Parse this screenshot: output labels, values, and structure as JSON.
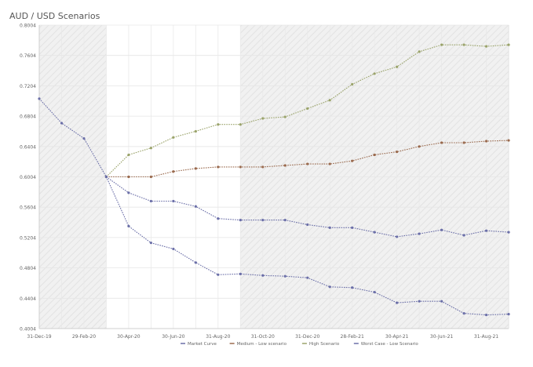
{
  "chart_data": {
    "type": "line",
    "title": "AUD / USD Scenarios",
    "x": [
      "31-Dec-19",
      "31-Jan-20",
      "29-Feb-20",
      "31-Mar-20",
      "30-Apr-20",
      "31-May-20",
      "30-Jun-20",
      "31-Jul-20",
      "31-Aug-20",
      "30-Sep-20",
      "31-Oct-20",
      "30-Nov-20",
      "31-Dec-20",
      "31-Jan-21",
      "28-Feb-21",
      "31-Mar-21",
      "30-Apr-21",
      "31-May-21",
      "30-Jun-21",
      "31-Jul-21",
      "31-Aug-21",
      "30-Sep-21"
    ],
    "x_tick_labels": [
      "31-Dec-19",
      "29-Feb-20",
      "30-Apr-20",
      "30-Jun-20",
      "31-Aug-20",
      "31-Oct-20",
      "31-Dec-20",
      "28-Feb-21",
      "30-Apr-21",
      "30-Jun-21",
      "31-Aug-21"
    ],
    "y_ticks": [
      "0.8004",
      "0.7604",
      "0.7204",
      "0.6804",
      "0.6404",
      "0.6004",
      "0.5604",
      "0.5204",
      "0.4804",
      "0.4404",
      "0.4004"
    ],
    "ylim": [
      0.4004,
      0.8004
    ],
    "grid": true,
    "legend_position": "bottom",
    "series": [
      {
        "name": "Market Curve",
        "color": "#6b6fa8",
        "values": [
          0.7034,
          0.6712,
          0.651,
          0.6004,
          null,
          null,
          null,
          null,
          null,
          null,
          null,
          null,
          null,
          null,
          null,
          null,
          null,
          null,
          null,
          null,
          null,
          null
        ]
      },
      {
        "name": "Medium - Low scenario",
        "color": "#9a6a4e",
        "values": [
          null,
          null,
          null,
          0.6004,
          0.6004,
          0.6004,
          0.6074,
          0.6114,
          0.6134,
          0.6134,
          0.6134,
          0.6154,
          0.6174,
          0.6174,
          0.6214,
          0.6294,
          0.6334,
          0.6404,
          0.6454,
          0.6454,
          0.6474,
          0.6484
        ]
      },
      {
        "name": "High Scenario",
        "color": "#9aa36a",
        "values": [
          null,
          null,
          null,
          0.6004,
          0.6294,
          0.6384,
          0.6524,
          0.6604,
          0.6694,
          0.6694,
          0.6774,
          0.6794,
          0.6904,
          0.7014,
          0.7224,
          0.7364,
          0.7454,
          0.7654,
          0.7744,
          0.7744,
          0.7724,
          0.7744
        ]
      },
      {
        "name": "Worst Case - Low Scenario",
        "color": "#6b6fa8",
        "values": [
          null,
          null,
          null,
          0.6004,
          0.5794,
          0.5684,
          0.5684,
          0.5614,
          0.5454,
          0.5434,
          0.5434,
          0.5434,
          0.5374,
          0.5334,
          0.5334,
          0.5274,
          0.5214,
          0.5254,
          0.5304,
          0.5234,
          0.5294,
          0.5274
        ]
      },
      {
        "name": "",
        "color": "#6b6fa8",
        "values": [
          null,
          null,
          null,
          0.6004,
          0.5354,
          0.5134,
          0.5054,
          0.4874,
          0.4714,
          0.4724,
          0.4704,
          0.4694,
          0.4674,
          0.4554,
          0.4544,
          0.4484,
          0.4344,
          0.4364,
          0.4364,
          0.4204,
          0.4184,
          0.4194
        ]
      }
    ],
    "shaded_regions": [
      {
        "from_index": 0,
        "to_index": 3
      },
      {
        "from_index": 9,
        "to_index": 21
      }
    ]
  }
}
